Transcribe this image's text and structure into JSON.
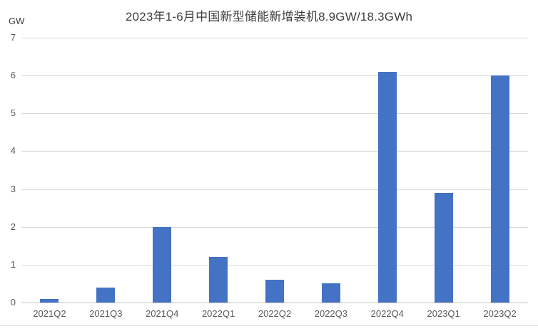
{
  "chart_data": {
    "type": "bar",
    "title": "2023年1-6月中国新型储能新增装机8.9GW/18.3GWh",
    "categories": [
      "2021Q2",
      "2021Q3",
      "2021Q4",
      "2022Q1",
      "2022Q2",
      "2022Q3",
      "2022Q4",
      "2023Q1",
      "2023Q2"
    ],
    "values": [
      0.1,
      0.4,
      2.0,
      1.2,
      0.6,
      0.5,
      6.1,
      2.9,
      6.0
    ],
    "xlabel": "",
    "ylabel": "GW",
    "ylim": [
      0,
      7
    ],
    "ytick_interval": 1,
    "yticks": [
      0,
      1,
      2,
      3,
      4,
      5,
      6,
      7
    ],
    "grid": true,
    "legend": "none",
    "bar_color": "#4472C4",
    "gridline_color": "#D9D9D9",
    "axis_line_color": "#C3C3C3",
    "title_color": "#3F3F3F",
    "tick_label_color": "#595959"
  }
}
